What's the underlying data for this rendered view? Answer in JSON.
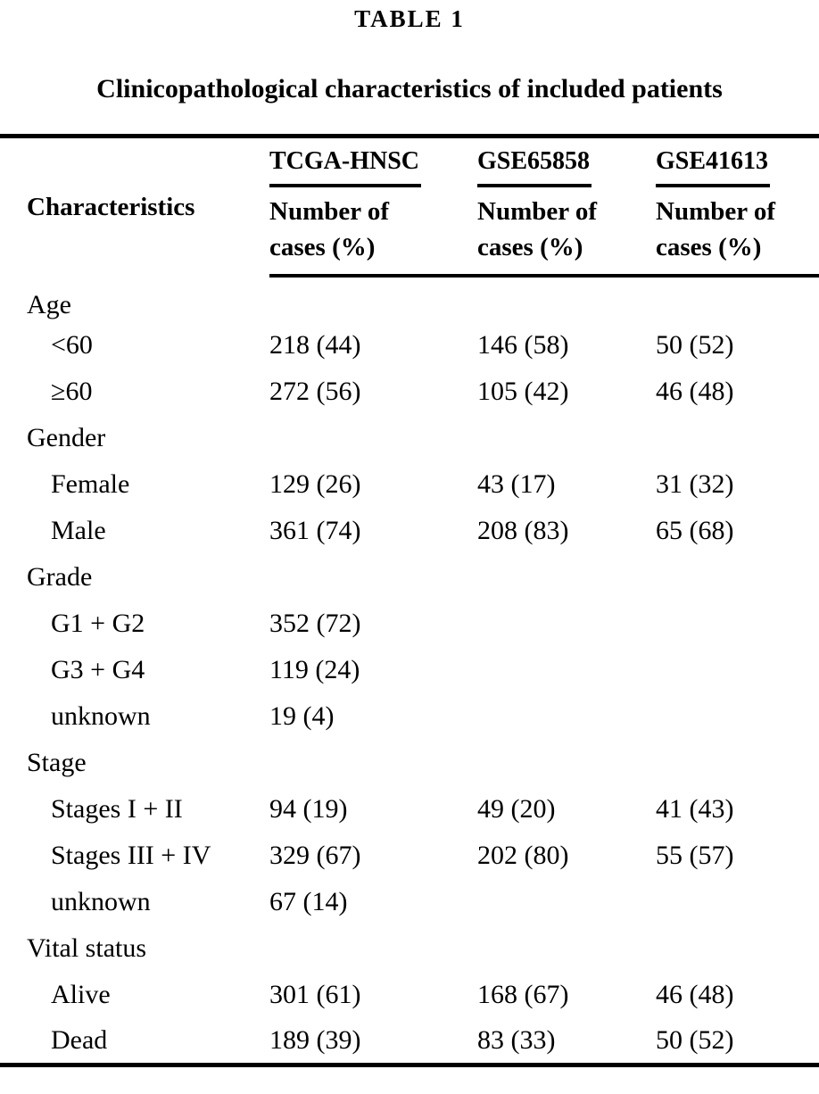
{
  "page": {
    "label": "TABLE 1",
    "title": "Clinicopathological characteristics of included patients"
  },
  "table": {
    "row_header": "Characteristics",
    "datasets": [
      "TCGA-HNSC",
      "GSE65858",
      "GSE41613"
    ],
    "subheader": "Number of cases (%)",
    "sections": [
      {
        "name": "Age",
        "rows": [
          {
            "label": "<60",
            "values": [
              "218 (44)",
              "146 (58)",
              "50 (52)"
            ]
          },
          {
            "label": "≥60",
            "values": [
              "272 (56)",
              "105 (42)",
              "46 (48)"
            ]
          }
        ]
      },
      {
        "name": "Gender",
        "rows": [
          {
            "label": "Female",
            "values": [
              "129 (26)",
              "43 (17)",
              "31 (32)"
            ]
          },
          {
            "label": "Male",
            "values": [
              "361 (74)",
              "208 (83)",
              "65 (68)"
            ]
          }
        ]
      },
      {
        "name": "Grade",
        "rows": [
          {
            "label": "G1 + G2",
            "values": [
              "352 (72)",
              "",
              ""
            ]
          },
          {
            "label": "G3 + G4",
            "values": [
              "119 (24)",
              "",
              ""
            ]
          },
          {
            "label": "unknown",
            "values": [
              "19 (4)",
              "",
              ""
            ]
          }
        ]
      },
      {
        "name": "Stage",
        "rows": [
          {
            "label": "Stages I + II",
            "values": [
              "94 (19)",
              "49 (20)",
              "41 (43)"
            ]
          },
          {
            "label": "Stages III + IV",
            "values": [
              "329 (67)",
              "202 (80)",
              "55 (57)"
            ]
          },
          {
            "label": "unknown",
            "values": [
              "67 (14)",
              "",
              ""
            ]
          }
        ]
      },
      {
        "name": "Vital status",
        "rows": [
          {
            "label": "Alive",
            "values": [
              "301 (61)",
              "168 (67)",
              "46 (48)"
            ]
          },
          {
            "label": "Dead",
            "values": [
              "189 (39)",
              "83 (33)",
              "50 (52)"
            ]
          }
        ]
      }
    ]
  },
  "colors": {
    "text": "#000000",
    "background": "#ffffff",
    "rule": "#000000"
  },
  "chart_data": {
    "type": "table",
    "title": "TABLE 1",
    "subtitle": "Clinicopathological characteristics of included patients",
    "columns": [
      "Characteristics",
      "TCGA-HNSC Number of cases (%)",
      "GSE65858 Number of cases (%)",
      "GSE41613 Number of cases (%)"
    ],
    "rows": [
      [
        "Age",
        "",
        "",
        ""
      ],
      [
        "<60",
        "218 (44)",
        "146 (58)",
        "50 (52)"
      ],
      [
        "≥60",
        "272 (56)",
        "105 (42)",
        "46 (48)"
      ],
      [
        "Gender",
        "",
        "",
        ""
      ],
      [
        "Female",
        "129 (26)",
        "43 (17)",
        "31 (32)"
      ],
      [
        "Male",
        "361 (74)",
        "208 (83)",
        "65 (68)"
      ],
      [
        "Grade",
        "",
        "",
        ""
      ],
      [
        "G1 + G2",
        "352 (72)",
        "",
        ""
      ],
      [
        "G3 + G4",
        "119 (24)",
        "",
        ""
      ],
      [
        "unknown",
        "19 (4)",
        "",
        ""
      ],
      [
        "Stage",
        "",
        "",
        ""
      ],
      [
        "Stages I + II",
        "94 (19)",
        "49 (20)",
        "41 (43)"
      ],
      [
        "Stages III + IV",
        "329 (67)",
        "202 (80)",
        "55 (57)"
      ],
      [
        "unknown",
        "67 (14)",
        "",
        ""
      ],
      [
        "Vital status",
        "",
        "",
        ""
      ],
      [
        "Alive",
        "301 (61)",
        "168 (67)",
        "46 (48)"
      ],
      [
        "Dead",
        "189 (39)",
        "83 (33)",
        "50 (52)"
      ]
    ]
  }
}
